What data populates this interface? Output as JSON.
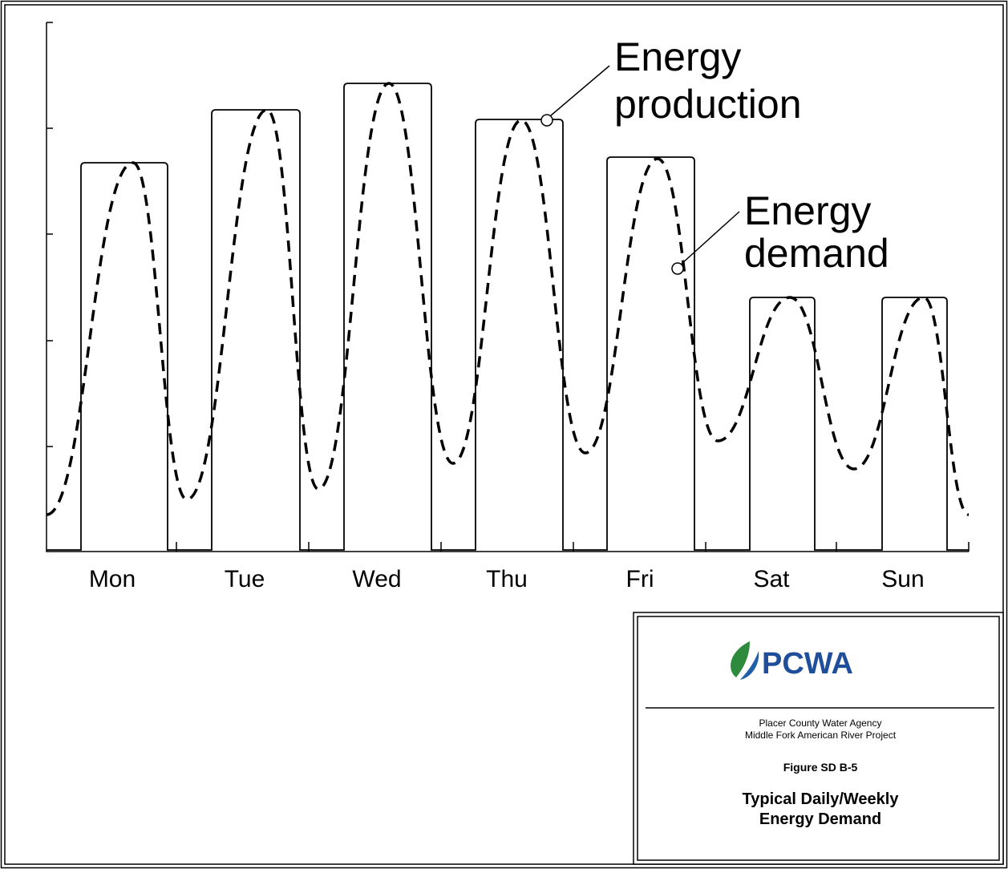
{
  "days": [
    "Mon",
    "Tue",
    "Wed",
    "Thu",
    "Fri",
    "Sat",
    "Sun"
  ],
  "callouts": {
    "production": [
      "Energy",
      "production"
    ],
    "demand": [
      "Energy",
      "demand"
    ]
  },
  "title_block": {
    "logo": "PCWA",
    "agency": "Placer County Water Agency",
    "project": "Middle Fork American River Project",
    "figure": "Figure SD B-5",
    "title": [
      "Typical Daily/Weekly",
      "Energy Demand"
    ]
  }
}
